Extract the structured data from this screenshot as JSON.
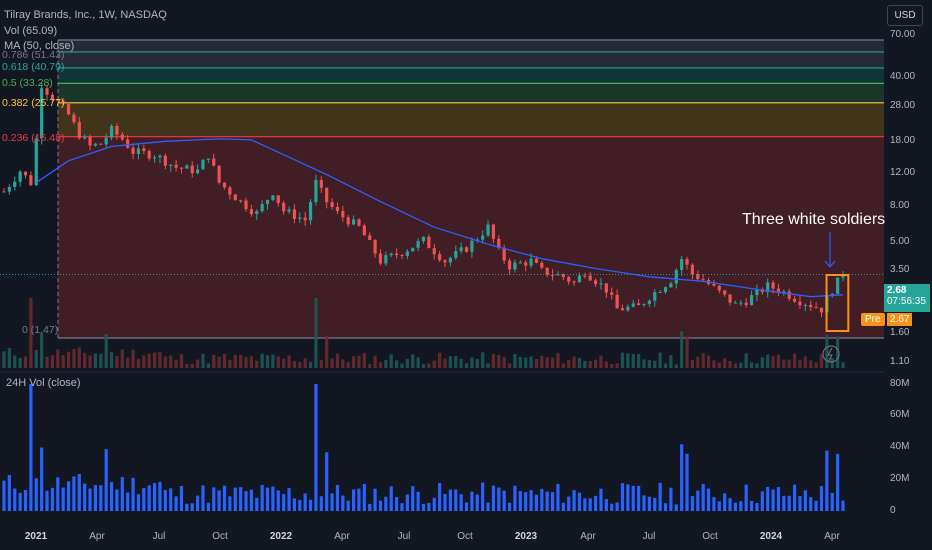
{
  "header": {
    "symbol_line": "Tilray Brands, Inc., 1W, NASDAQ",
    "vol_line": "Vol (65.09)",
    "ma_line": "MA (50, close)",
    "currency": "USD"
  },
  "fib_labels": {
    "l786": "0.786 (51.43)",
    "l618": "0.618 (40.79)",
    "l5": "0.5 (33.28)",
    "l382": "0.382 (25.77)",
    "l236": "0.236 (16.48)",
    "l0": "0 (1.47)"
  },
  "colors": {
    "fib_gray": "#787b86",
    "fib_teal": "#26a69a",
    "fib_green": "#4caf50",
    "fib_yellow": "#f7c948",
    "fib_red": "#f23645",
    "up": "#26a69a",
    "down": "#ef5350",
    "ma": "#2962ff",
    "vol_bar": "#2962ff",
    "highlight": "#f7931a"
  },
  "price_axis": {
    "ticks": [
      "70.00",
      "40.00",
      "28.00",
      "18.00",
      "12.00",
      "8.00",
      "5.00",
      "3.50",
      "1.60",
      "1.10"
    ],
    "last_price": "2.68",
    "countdown": "07:56:35",
    "pre_label": "Pre",
    "pre_price": "2.67"
  },
  "time_axis": {
    "labels": [
      {
        "t": "2021",
        "year": true
      },
      {
        "t": "Apr",
        "year": false
      },
      {
        "t": "Jul",
        "year": false
      },
      {
        "t": "Oct",
        "year": false
      },
      {
        "t": "2022",
        "year": true
      },
      {
        "t": "Apr",
        "year": false
      },
      {
        "t": "Jul",
        "year": false
      },
      {
        "t": "Oct",
        "year": false
      },
      {
        "t": "2023",
        "year": true
      },
      {
        "t": "Apr",
        "year": false
      },
      {
        "t": "Jul",
        "year": false
      },
      {
        "t": "Oct",
        "year": false
      },
      {
        "t": "2024",
        "year": true
      },
      {
        "t": "Apr",
        "year": false
      }
    ]
  },
  "volume_pane": {
    "title": "24H Vol (close)",
    "ticks": [
      "80M",
      "60M",
      "40M",
      "20M",
      "0"
    ]
  },
  "annotation": "Three white soldiers",
  "chart_data": {
    "type": "candlestick",
    "title": "Tilray Brands, Inc., 1W, NASDAQ",
    "y_scale": "log",
    "fib_levels": [
      {
        "ratio": 0.786,
        "price": 51.43
      },
      {
        "ratio": 0.618,
        "price": 40.79
      },
      {
        "ratio": 0.5,
        "price": 33.28
      },
      {
        "ratio": 0.382,
        "price": 25.77
      },
      {
        "ratio": 0.236,
        "price": 16.48
      },
      {
        "ratio": 0,
        "price": 1.47
      }
    ],
    "price_path": [
      [
        0,
        8.0
      ],
      [
        3,
        10.5
      ],
      [
        5,
        9.0
      ],
      [
        6,
        16.0
      ],
      [
        7,
        33.0
      ],
      [
        8,
        30.0
      ],
      [
        10,
        26.0
      ],
      [
        12,
        22.0
      ],
      [
        14,
        17.0
      ],
      [
        16,
        14.5
      ],
      [
        18,
        15.0
      ],
      [
        20,
        18.0
      ],
      [
        22,
        16.0
      ],
      [
        24,
        13.5
      ],
      [
        28,
        13.0
      ],
      [
        32,
        11.0
      ],
      [
        36,
        10.5
      ],
      [
        38,
        13.0
      ],
      [
        40,
        9.0
      ],
      [
        44,
        7.0
      ],
      [
        47,
        6.0
      ],
      [
        50,
        8.0
      ],
      [
        52,
        6.2
      ],
      [
        56,
        5.5
      ],
      [
        58,
        9.0
      ],
      [
        60,
        7.0
      ],
      [
        62,
        6.0
      ],
      [
        66,
        5.0
      ],
      [
        70,
        3.2
      ],
      [
        74,
        3.6
      ],
      [
        78,
        4.2
      ],
      [
        82,
        3.2
      ],
      [
        86,
        3.8
      ],
      [
        90,
        5.0
      ],
      [
        92,
        3.6
      ],
      [
        94,
        3.0
      ],
      [
        98,
        3.2
      ],
      [
        100,
        2.8
      ],
      [
        104,
        2.6
      ],
      [
        106,
        2.4
      ],
      [
        108,
        2.8
      ],
      [
        112,
        2.2
      ],
      [
        114,
        1.7
      ],
      [
        118,
        1.75
      ],
      [
        120,
        2.0
      ],
      [
        124,
        2.5
      ],
      [
        126,
        3.3
      ],
      [
        128,
        2.7
      ],
      [
        130,
        2.5
      ],
      [
        134,
        2.0
      ],
      [
        136,
        1.8
      ],
      [
        138,
        1.9
      ],
      [
        142,
        2.3
      ],
      [
        144,
        2.2
      ],
      [
        148,
        1.9
      ],
      [
        150,
        1.8
      ],
      [
        152,
        1.7
      ],
      [
        154,
        2.2
      ],
      [
        156,
        2.68
      ]
    ],
    "ma_path": [
      [
        6,
        9.0
      ],
      [
        12,
        12.0
      ],
      [
        20,
        14.5
      ],
      [
        30,
        15.5
      ],
      [
        40,
        16.0
      ],
      [
        46,
        15.8
      ],
      [
        52,
        13.0
      ],
      [
        60,
        10.0
      ],
      [
        70,
        7.0
      ],
      [
        80,
        5.0
      ],
      [
        90,
        4.0
      ],
      [
        100,
        3.3
      ],
      [
        110,
        2.9
      ],
      [
        120,
        2.6
      ],
      [
        130,
        2.45
      ],
      [
        140,
        2.2
      ],
      [
        150,
        2.0
      ],
      [
        156,
        2.05
      ]
    ],
    "last_price": 2.68,
    "volume_ylim": [
      0,
      80
    ],
    "volume_unit": "M",
    "volume_spikes": [
      {
        "week": 5,
        "value": 80
      },
      {
        "week": 7,
        "value": 40
      },
      {
        "week": 19,
        "value": 39
      },
      {
        "week": 58,
        "value": 80
      },
      {
        "week": 60,
        "value": 37
      },
      {
        "week": 126,
        "value": 42
      },
      {
        "week": 127,
        "value": 36
      },
      {
        "week": 153,
        "value": 38
      },
      {
        "week": 155,
        "value": 36
      }
    ]
  }
}
